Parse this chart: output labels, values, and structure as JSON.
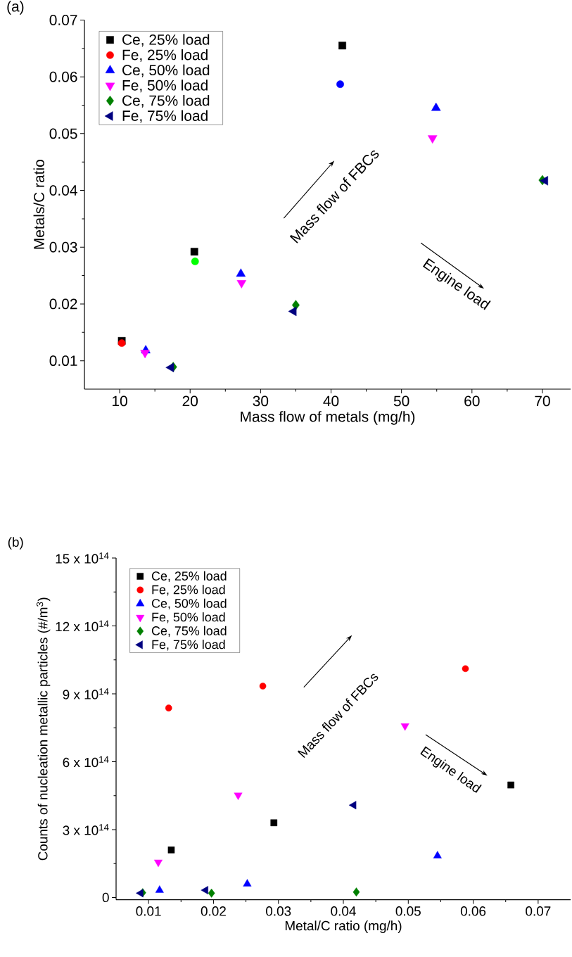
{
  "chart_data": [
    {
      "type": "scatter",
      "title": "(a)",
      "xlabel": "Mass flow of metals (mg/h)",
      "ylabel": "Metals/C ratio",
      "xlim": [
        5,
        74
      ],
      "ylim": [
        0.005,
        0.07
      ],
      "xticks": [
        10,
        20,
        30,
        40,
        50,
        60,
        70
      ],
      "yticks": [
        0.01,
        0.02,
        0.03,
        0.04,
        0.05,
        0.06,
        0.07
      ],
      "legend": "top left",
      "annotations": [
        "Mass flow of FBCs",
        "Engine load"
      ],
      "series": [
        {
          "name": "Ce, 25% load",
          "color": "#000000",
          "marker": "square",
          "x": [
            41.6,
            20.6,
            10.3
          ],
          "values": [
            0.0655,
            0.0292,
            0.0135
          ]
        },
        {
          "name": "Fe, 25% load",
          "color": "#ff0000",
          "colors": [
            "#ff0000",
            "#00ff00",
            "#0000ff"
          ],
          "marker": "circle",
          "x": [
            10.3,
            20.7,
            41.3
          ],
          "values": [
            0.0131,
            0.0275,
            0.0587
          ]
        },
        {
          "name": "Ce, 50% load",
          "color": "#0000ff",
          "marker": "triangle",
          "x": [
            13.7,
            27.2,
            54.9
          ],
          "values": [
            0.0118,
            0.0253,
            0.0545
          ]
        },
        {
          "name": "Fe, 50% load",
          "color": "#ff00ff",
          "marker": "triangle",
          "x": [
            13.6,
            27.3,
            54.4
          ],
          "values": [
            0.0114,
            0.0237,
            0.0492
          ]
        },
        {
          "name": "Ce, 75% load",
          "color": "#008000",
          "marker": "diamond",
          "x": [
            17.6,
            35.0,
            70.0
          ],
          "values": [
            0.0089,
            0.0198,
            0.0418
          ]
        },
        {
          "name": "Fe, 75% load",
          "color": "#000080",
          "marker": "triangle",
          "x": [
            17.3,
            34.7,
            70.4
          ],
          "values": [
            0.0088,
            0.0187,
            0.0417
          ]
        }
      ]
    },
    {
      "type": "scatter",
      "title": "(b)",
      "xlabel": "Metal/C ratio (mg/h)",
      "ylabel": "Counts of nucleation metallic particles (#/m$^{3}$)",
      "xlim": [
        0.005,
        0.075
      ],
      "ylim": [
        -10000000000000.0,
        1500000000000000.0
      ],
      "xticks": [
        0.01,
        0.02,
        0.03,
        0.04,
        0.05,
        0.06,
        0.07
      ],
      "yticks": [
        0,
        {
          "value": 300000000000000.0,
          "label": "3 x 10$^{14}$"
        },
        {
          "value": 600000000000000.0,
          "label": "6 x 10$^{14}$"
        },
        {
          "value": 900000000000000.0,
          "label": "9 x 10$^{14}$"
        },
        {
          "value": 1200000000000000.0,
          "label": "12 x 10$^{14}$"
        },
        {
          "value": 1500000000000000.0,
          "label": "15 x 10$^{14}$"
        }
      ],
      "legend": "top left",
      "annotations": [
        "Mass flow of FBCs",
        "Engine load"
      ],
      "series": [
        {
          "name": "Ce, 25% load",
          "color": "#000000",
          "marker": "square",
          "x": [
            0.0135,
            0.0293,
            0.0658
          ],
          "values": [
            210000000000000.0,
            330000000000000.0,
            497000000000000.0
          ]
        },
        {
          "name": "Fe, 25% load",
          "color": "#ff0000",
          "marker": "circle",
          "x": [
            0.0131,
            0.0276,
            0.0588
          ],
          "values": [
            837000000000000.0,
            934000000000000.0,
            1011000000000000.0
          ]
        },
        {
          "name": "Ce, 50% load",
          "color": "#0000ff",
          "marker": "triangle",
          "x": [
            0.0117,
            0.0252,
            0.0545
          ],
          "values": [
            32000000000000.0,
            60000000000000.0,
            184000000000000.0
          ]
        },
        {
          "name": "Fe, 50% load",
          "color": "#ff00ff",
          "marker": "triangle",
          "x": [
            0.0115,
            0.0238,
            0.0495
          ],
          "values": [
            156000000000000.0,
            452000000000000.0,
            758000000000000.0
          ]
        },
        {
          "name": "Ce, 75% load",
          "color": "#008000",
          "marker": "diamond",
          "x": [
            0.0091,
            0.0197,
            0.042
          ],
          "values": [
            21000000000000.0,
            19000000000000.0,
            24000000000000.0
          ]
        },
        {
          "name": "Fe, 75% load",
          "color": "#000080",
          "marker": "triangle",
          "x": [
            0.0088,
            0.0188,
            0.0416
          ],
          "values": [
            19000000000000.0,
            32000000000000.0,
            408000000000000.0
          ]
        }
      ]
    }
  ]
}
